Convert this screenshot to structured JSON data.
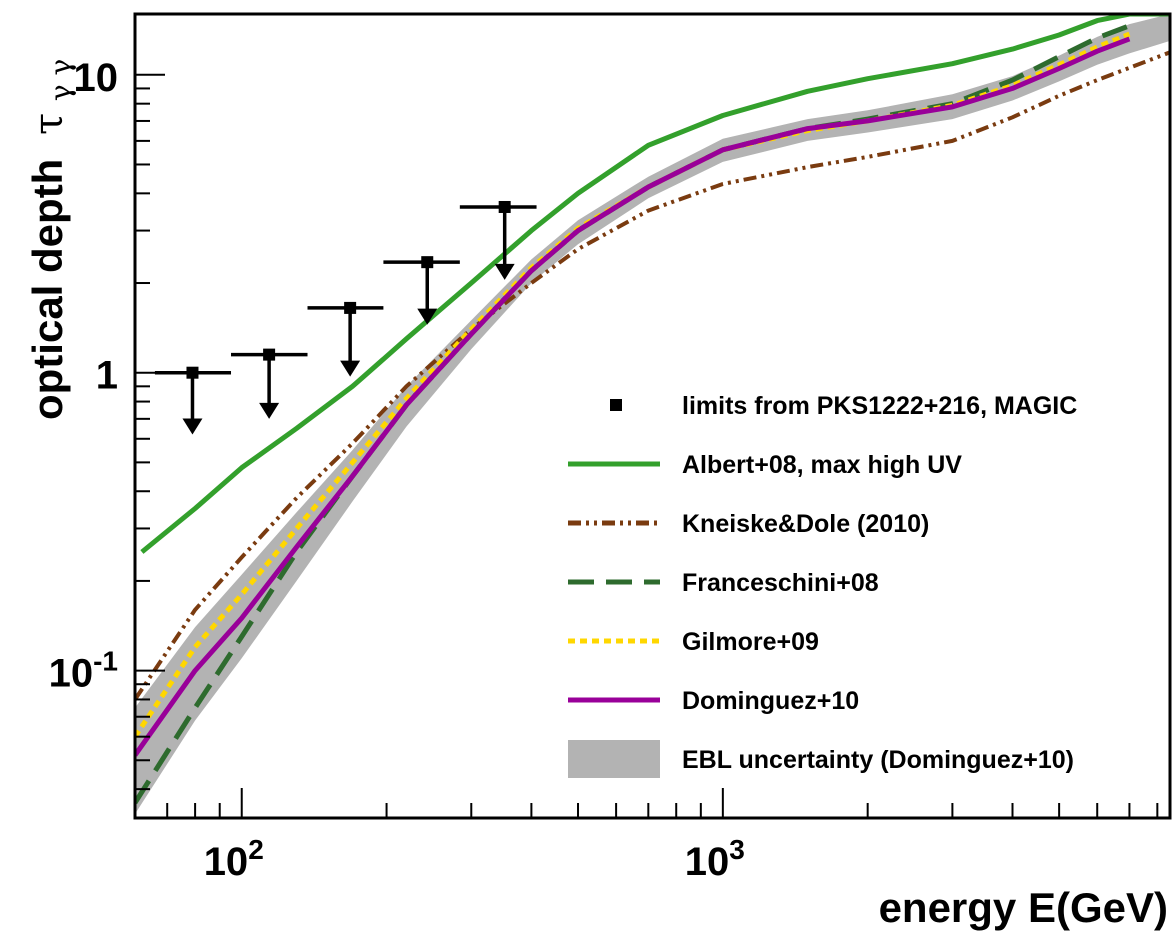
{
  "chart_data": {
    "type": "line",
    "xlabel": "energy E(GeV)",
    "ylabel": "optical depth",
    "ylabel_symbol": "τ",
    "ylabel_subscript": "γ γ",
    "xscale": "log",
    "yscale": "log",
    "xlim": [
      60,
      8500
    ],
    "ylim": [
      0.032,
      16
    ],
    "grid": false,
    "legend_position": "bottom-right",
    "x_ticks": [
      {
        "base": "10",
        "exp": "2"
      },
      {
        "base": "10",
        "exp": "3"
      }
    ],
    "y_ticks": [
      {
        "base": "10",
        "exp": "-1"
      },
      {
        "base": "1",
        "exp": ""
      },
      {
        "base": "10",
        "exp": ""
      }
    ],
    "limits": {
      "name": "limits from PKS1222+216, MAGIC",
      "points": [
        {
          "x": 79,
          "y": 1.0,
          "xlow": 66,
          "xhigh": 95,
          "arrow_to": 0.62
        },
        {
          "x": 114,
          "y": 1.15,
          "xlow": 95,
          "xhigh": 137,
          "arrow_to": 0.7
        },
        {
          "x": 168,
          "y": 1.65,
          "xlow": 137,
          "xhigh": 197,
          "arrow_to": 0.97
        },
        {
          "x": 243,
          "y": 2.35,
          "xlow": 197,
          "xhigh": 284,
          "arrow_to": 1.45
        },
        {
          "x": 352,
          "y": 3.6,
          "xlow": 284,
          "xhigh": 410,
          "arrow_to": 2.05
        }
      ],
      "color": "#000000"
    },
    "series": [
      {
        "name": "Albert+08, max high UV",
        "color": "#33a02c",
        "style": "solid",
        "x": [
          62,
          80,
          100,
          130,
          170,
          220,
          300,
          400,
          500,
          700,
          1000,
          1500,
          2000,
          3000,
          4000,
          5000,
          6000,
          7000,
          8500
        ],
        "y": [
          0.25,
          0.35,
          0.48,
          0.65,
          0.9,
          1.3,
          2.0,
          3.0,
          4.0,
          5.8,
          7.3,
          8.8,
          9.7,
          10.9,
          12.2,
          13.6,
          15.2,
          16.0,
          16.0
        ]
      },
      {
        "name": "Kneiske&Dole (2010)",
        "color": "#7a3b10",
        "style": "dash-dot-dot",
        "x": [
          60,
          80,
          100,
          130,
          170,
          220,
          300,
          400,
          500,
          700,
          1000,
          1500,
          2000,
          3000,
          4000,
          5000,
          6000,
          8500
        ],
        "y": [
          0.08,
          0.16,
          0.24,
          0.38,
          0.58,
          0.9,
          1.4,
          2.0,
          2.6,
          3.5,
          4.3,
          4.9,
          5.3,
          6.0,
          7.2,
          8.5,
          9.6,
          11.9
        ]
      },
      {
        "name": "Franceschini+08",
        "color": "#2e6b2e",
        "style": "long-dash",
        "x": [
          60,
          80,
          100,
          130,
          170,
          220,
          300,
          400,
          500,
          700,
          1000,
          1500,
          2000,
          3000,
          4000,
          5000,
          6000,
          7000
        ],
        "y": [
          0.036,
          0.075,
          0.13,
          0.25,
          0.45,
          0.78,
          1.35,
          2.2,
          3.0,
          4.2,
          5.6,
          6.6,
          7.1,
          8.0,
          9.6,
          11.5,
          13.3,
          14.6
        ]
      },
      {
        "name": "Gilmore+09",
        "color": "#ffd700",
        "style": "dotted",
        "x": [
          60,
          80,
          100,
          130,
          170,
          220,
          300,
          400,
          500,
          700,
          1000,
          1500,
          2000,
          3000,
          4000,
          5000,
          6000,
          7000
        ],
        "y": [
          0.06,
          0.12,
          0.18,
          0.3,
          0.5,
          0.82,
          1.4,
          2.25,
          3.05,
          4.2,
          5.6,
          6.5,
          7.0,
          7.9,
          9.2,
          10.8,
          12.4,
          13.7
        ]
      },
      {
        "name": "Dominguez+10",
        "color": "#990099",
        "style": "solid",
        "x": [
          60,
          80,
          100,
          130,
          170,
          220,
          300,
          400,
          500,
          700,
          1000,
          1500,
          2000,
          3000,
          4000,
          5000,
          6000,
          7000
        ],
        "y": [
          0.052,
          0.1,
          0.15,
          0.26,
          0.45,
          0.78,
          1.35,
          2.2,
          3.0,
          4.2,
          5.6,
          6.6,
          7.0,
          7.8,
          9.0,
          10.5,
          12.0,
          13.2
        ]
      }
    ],
    "band": {
      "name": "EBL uncertainty (Dominguez+10)",
      "color": "#b3b3b3",
      "x": [
        60,
        80,
        100,
        130,
        170,
        220,
        300,
        400,
        500,
        700,
        1000,
        1500,
        2000,
        3000,
        4000,
        5000,
        6000,
        7000,
        8500
      ],
      "low": [
        0.033,
        0.068,
        0.11,
        0.2,
        0.37,
        0.66,
        1.2,
        2.0,
        2.7,
        3.85,
        5.1,
        6.0,
        6.4,
        7.1,
        8.2,
        9.5,
        10.8,
        11.8,
        13.0
      ],
      "high": [
        0.075,
        0.14,
        0.21,
        0.34,
        0.55,
        0.9,
        1.5,
        2.4,
        3.25,
        4.55,
        6.1,
        7.1,
        7.6,
        8.6,
        9.9,
        11.6,
        13.4,
        14.8,
        16.0
      ]
    }
  }
}
